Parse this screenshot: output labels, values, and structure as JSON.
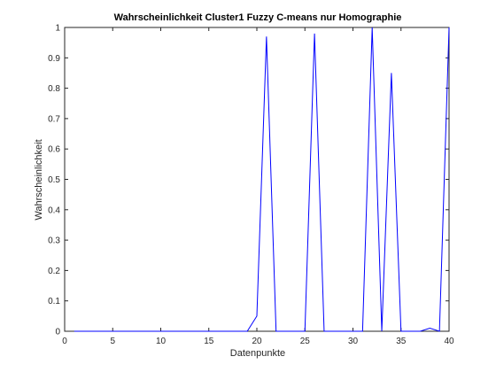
{
  "chart_data": {
    "type": "line",
    "title": "Wahrscheinlichkeit Cluster1 Fuzzy C-means nur Homographie",
    "xlabel": "Datenpunkte",
    "ylabel": "Wahrscheinlichkeit",
    "xlim": [
      0,
      40
    ],
    "ylim": [
      0,
      1
    ],
    "xticks": [
      "0",
      "5",
      "10",
      "15",
      "20",
      "25",
      "30",
      "35",
      "40"
    ],
    "yticks": [
      "0",
      "0.1",
      "0.2",
      "0.3",
      "0.4",
      "0.5",
      "0.6",
      "0.7",
      "0.8",
      "0.9",
      "1"
    ],
    "grid": false,
    "series": [
      {
        "color": "#0000ff",
        "x": [
          1,
          2,
          3,
          4,
          5,
          6,
          7,
          8,
          9,
          10,
          11,
          12,
          13,
          14,
          15,
          16,
          17,
          18,
          19,
          20,
          21,
          22,
          23,
          24,
          25,
          26,
          27,
          28,
          29,
          30,
          31,
          32,
          33,
          34,
          35,
          36,
          37,
          38,
          39,
          40
        ],
        "y": [
          0,
          0,
          0,
          0,
          0,
          0,
          0,
          0,
          0,
          0,
          0,
          0,
          0,
          0,
          0,
          0,
          0,
          0,
          0,
          0.05,
          0.97,
          0,
          0,
          0,
          0,
          0.98,
          0,
          0,
          0,
          0,
          0,
          1.0,
          0,
          0.85,
          0,
          0,
          0,
          0.01,
          0,
          1.0
        ]
      }
    ]
  }
}
